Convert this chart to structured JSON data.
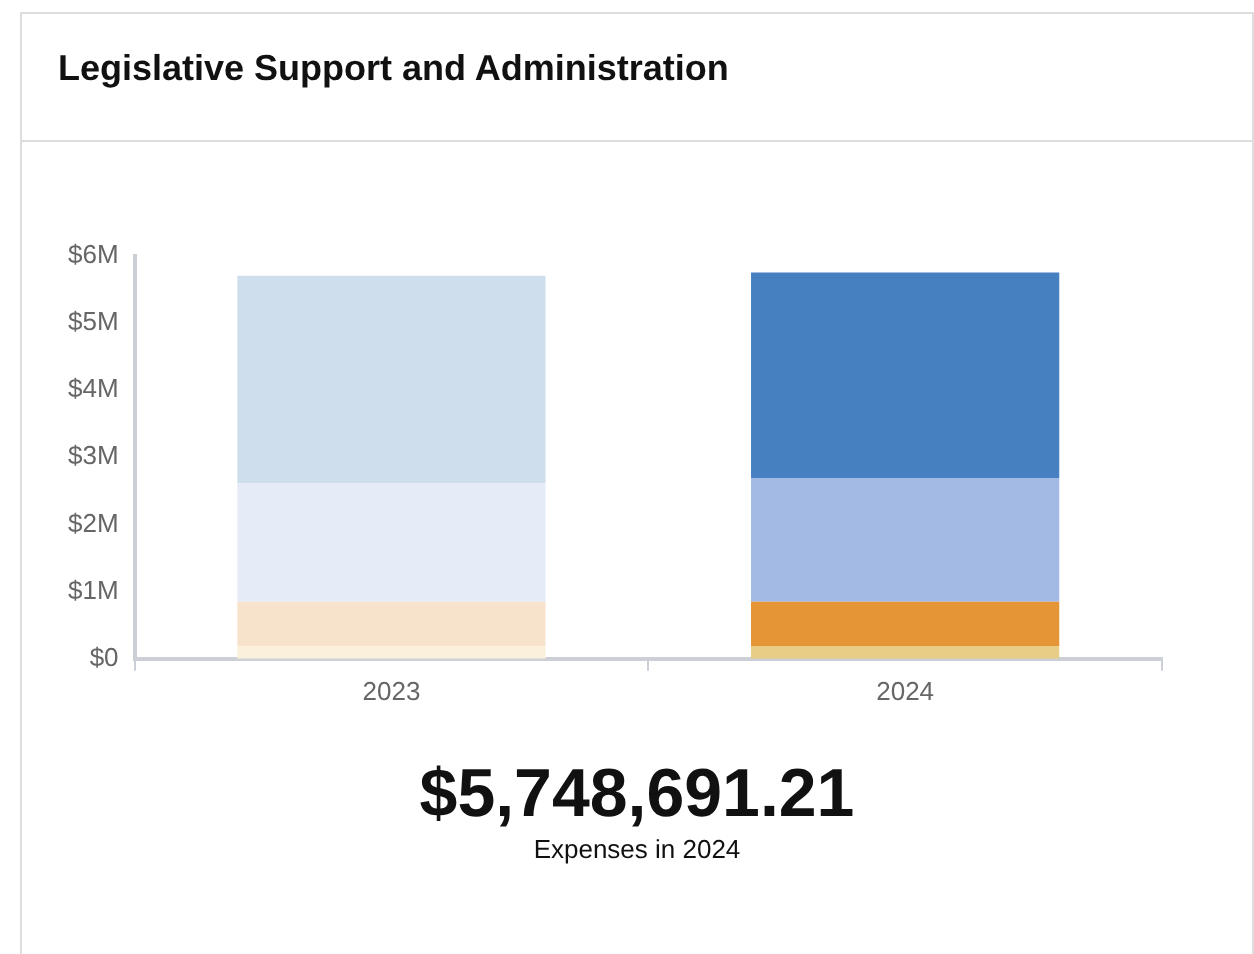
{
  "chart_data": {
    "type": "bar",
    "title": "Legislative Support and Administration",
    "categories": [
      "2023",
      "2024"
    ],
    "stacked": true,
    "series": [
      {
        "colors": [
          "#faf0dc",
          "#e8cd86"
        ],
        "values": [
          0.19,
          0.19
        ]
      },
      {
        "colors": [
          "#f7e3cb",
          "#e59436"
        ],
        "values": [
          0.66,
          0.66
        ]
      },
      {
        "colors": [
          "#e5ebf7",
          "#a3bbe4"
        ],
        "values": [
          1.76,
          1.84
        ]
      },
      {
        "colors": [
          "#cfdeed",
          "#4680c1"
        ],
        "values": [
          3.09,
          3.06
        ]
      }
    ],
    "ylim": [
      0,
      6
    ],
    "yticks": [
      {
        "value": 0,
        "label": "$0"
      },
      {
        "value": 1,
        "label": "$1M"
      },
      {
        "value": 2,
        "label": "$2M"
      },
      {
        "value": 3,
        "label": "$3M"
      },
      {
        "value": 4,
        "label": "$4M"
      },
      {
        "value": 5,
        "label": "$5M"
      },
      {
        "value": 6,
        "label": "$6M"
      }
    ],
    "grid": false,
    "legend": false,
    "annotations": [
      "$5,748,691.21",
      "Expenses in 2024"
    ]
  }
}
